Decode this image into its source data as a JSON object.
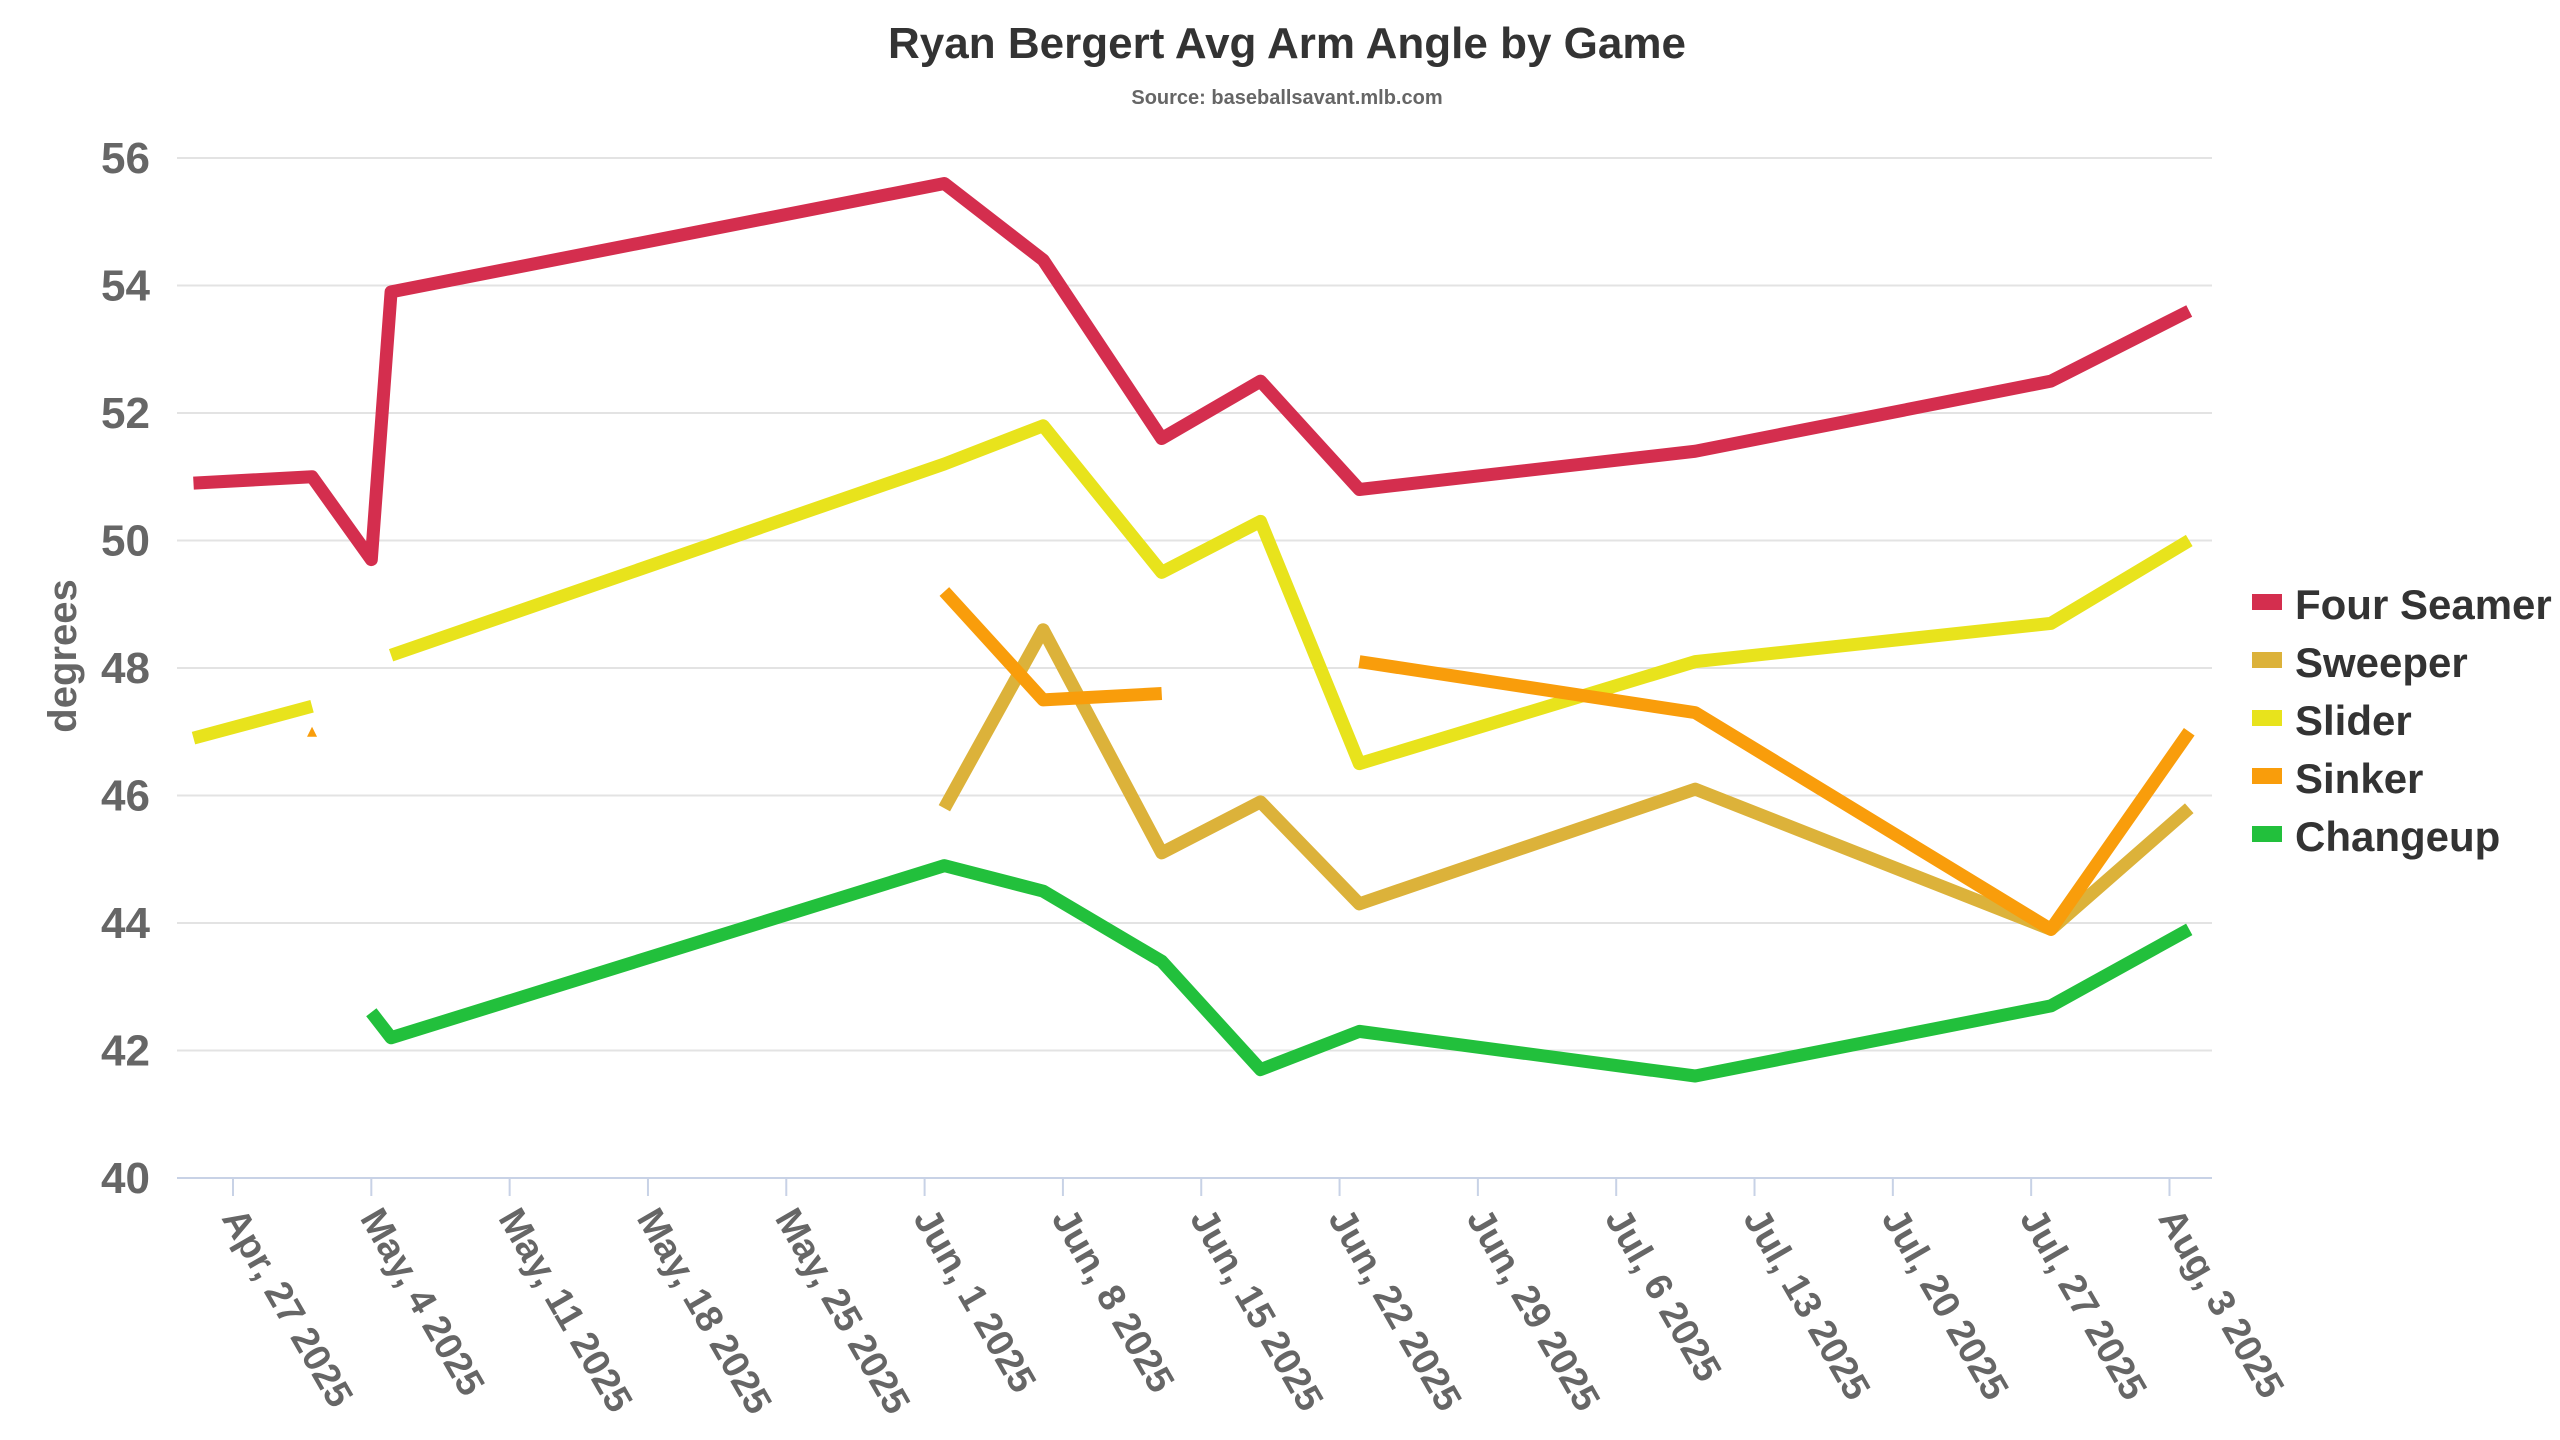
{
  "chart_data": {
    "type": "line",
    "title": "Ryan Bergert Avg Arm Angle by Game",
    "subtitle": "Source: baseballsavant.mlb.com",
    "xlabel": "",
    "ylabel": "degrees",
    "ylim": [
      40,
      56
    ],
    "yticks": [
      "40",
      "42",
      "44",
      "46",
      "48",
      "50",
      "52",
      "54",
      "56"
    ],
    "xticks": [
      "Apr, 27 2025",
      "May, 4 2025",
      "May, 11 2025",
      "May, 18 2025",
      "May, 25 2025",
      "Jun, 1 2025",
      "Jun, 8 2025",
      "Jun, 15 2025",
      "Jun, 22 2025",
      "Jun, 29 2025",
      "Jul, 6 2025",
      "Jul, 13 2025",
      "Jul, 20 2025",
      "Jul, 27 2025",
      "Aug, 3 2025"
    ],
    "x": [
      "2025-04-25",
      "2025-05-01",
      "2025-05-04",
      "2025-05-05",
      "2025-06-02",
      "2025-06-07",
      "2025-06-13",
      "2025-06-18",
      "2025-06-23",
      "2025-07-10",
      "2025-07-28",
      "2025-08-04"
    ],
    "grid": true,
    "legend_position": "right",
    "series": [
      {
        "name": "Four Seamer",
        "color": "#d42e4e",
        "values": [
          50.9,
          51.0,
          49.7,
          53.9,
          55.6,
          54.4,
          51.6,
          52.5,
          50.8,
          51.4,
          52.5,
          53.6
        ]
      },
      {
        "name": "Sweeper",
        "color": "#dcb23a",
        "values": [
          null,
          null,
          null,
          null,
          45.8,
          48.6,
          45.1,
          45.9,
          44.3,
          46.1,
          43.9,
          45.8
        ]
      },
      {
        "name": "Slider",
        "color": "#e8e31c",
        "values": [
          46.9,
          47.4,
          null,
          48.2,
          51.2,
          51.8,
          49.5,
          50.3,
          46.5,
          48.1,
          48.7,
          50.0
        ]
      },
      {
        "name": "Sinker",
        "color": "#f99d0b",
        "values": [
          null,
          47.0,
          null,
          null,
          49.2,
          47.5,
          47.6,
          null,
          48.1,
          47.3,
          43.9,
          47.0
        ]
      },
      {
        "name": "Changeup",
        "color": "#22c03c",
        "values": [
          null,
          null,
          42.6,
          42.2,
          44.9,
          44.5,
          43.4,
          41.7,
          42.3,
          41.6,
          42.7,
          43.9
        ]
      }
    ]
  }
}
